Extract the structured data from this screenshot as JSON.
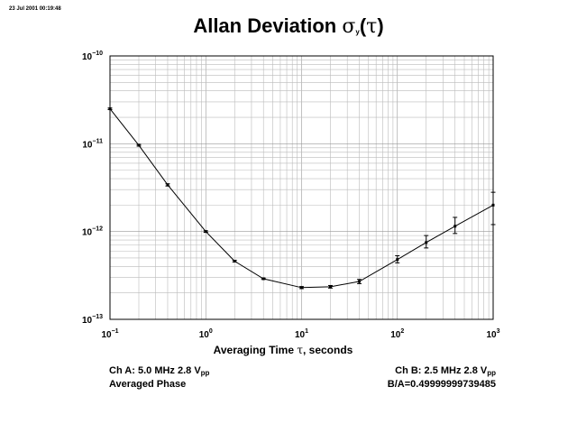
{
  "header": {
    "timestamp": "23 Jul 2001 00:19:48",
    "title_text": "Allan Deviation ",
    "title_symbol": "σ",
    "title_sub": "y",
    "title_open": "(",
    "title_tau": "τ",
    "title_close": ")"
  },
  "axis": {
    "xlabel_pre": "Averaging Time ",
    "xlabel_tau": "τ",
    "xlabel_post": ", seconds"
  },
  "footer": {
    "ch_a_pre": "Ch A: 5.0 MHz 2.8 V",
    "ch_a_sub": "pp",
    "averaged": "Averaged Phase",
    "ch_b_pre": "Ch B: 2.5 MHz 2.8 V",
    "ch_b_sub": "pp",
    "ratio": "B/A=0.49999999739485"
  },
  "chart_data": {
    "type": "line",
    "title": "Allan Deviation σy(τ)",
    "xlabel": "Averaging Time τ, seconds",
    "ylabel": "",
    "xscale": "log",
    "yscale": "log",
    "xlim": [
      0.1,
      1000
    ],
    "ylim": [
      1e-13,
      1e-10
    ],
    "grid": true,
    "x_ticks": [
      {
        "value": 0.1,
        "base": "10",
        "exp": "−1"
      },
      {
        "value": 1,
        "base": "10",
        "exp": "0"
      },
      {
        "value": 10,
        "base": "10",
        "exp": "1"
      },
      {
        "value": 100,
        "base": "10",
        "exp": "2"
      },
      {
        "value": 1000,
        "base": "10",
        "exp": "3"
      }
    ],
    "y_ticks": [
      {
        "value": 1e-10,
        "base": "10",
        "exp": "−10"
      },
      {
        "value": 1e-11,
        "base": "10",
        "exp": "−11"
      },
      {
        "value": 1e-12,
        "base": "10",
        "exp": "−12"
      },
      {
        "value": 1e-13,
        "base": "10",
        "exp": "−13"
      }
    ],
    "series": [
      {
        "points": [
          {
            "x": 0.1,
            "y": 2.5e-11,
            "lo": 2.45e-11,
            "hi": 2.55e-11
          },
          {
            "x": 0.2,
            "y": 9.6e-12,
            "lo": 9.4e-12,
            "hi": 9.8e-12
          },
          {
            "x": 0.4,
            "y": 3.4e-12,
            "lo": 3.3e-12,
            "hi": 3.5e-12
          },
          {
            "x": 1,
            "y": 1e-12,
            "lo": 9.8e-13,
            "hi": 1.02e-12
          },
          {
            "x": 2,
            "y": 4.6e-13,
            "lo": 4.5e-13,
            "hi": 4.7e-13
          },
          {
            "x": 4,
            "y": 2.9e-13,
            "lo": 2.85e-13,
            "hi": 2.95e-13
          },
          {
            "x": 10,
            "y": 2.3e-13,
            "lo": 2.24e-13,
            "hi": 2.36e-13
          },
          {
            "x": 20,
            "y": 2.35e-13,
            "lo": 2.27e-13,
            "hi": 2.43e-13
          },
          {
            "x": 40,
            "y": 2.7e-13,
            "lo": 2.55e-13,
            "hi": 2.85e-13
          },
          {
            "x": 100,
            "y": 4.8e-13,
            "lo": 4.4e-13,
            "hi": 5.3e-13
          },
          {
            "x": 200,
            "y": 7.5e-13,
            "lo": 6.5e-13,
            "hi": 9e-13
          },
          {
            "x": 400,
            "y": 1.15e-12,
            "lo": 9.5e-13,
            "hi": 1.45e-12
          },
          {
            "x": 1000,
            "y": 2e-12,
            "lo": 1.2e-12,
            "hi": 2.8e-12
          }
        ]
      }
    ]
  }
}
